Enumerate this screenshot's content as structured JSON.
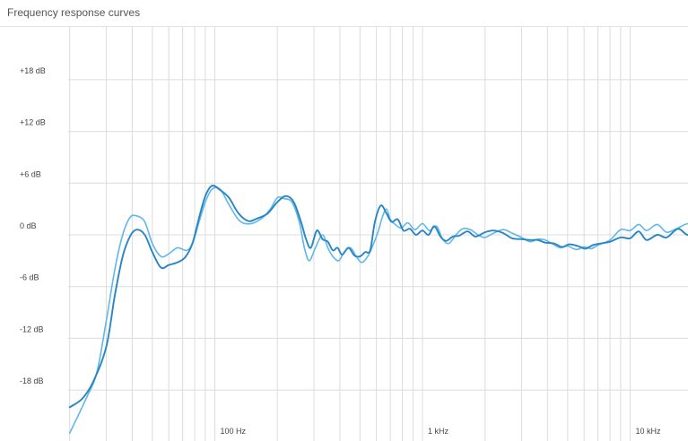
{
  "title": "Frequency response curves",
  "colors": {
    "background": "#ffffff",
    "grid": "#dcdcdc",
    "series_dark": "#2a86c2",
    "series_light": "#5fb7ea"
  },
  "chart_data": {
    "type": "line",
    "title": "Frequency response curves",
    "x_scale": "log",
    "xlim_hz": [
      20,
      23000
    ],
    "ylim_db": [
      -21,
      23
    ],
    "grid": true,
    "x_ticks": [
      {
        "value": 100,
        "label": "100 Hz"
      },
      {
        "value": 1000,
        "label": "1 kHz"
      },
      {
        "value": 10000,
        "label": "10 kHz"
      }
    ],
    "y_ticks": [
      {
        "value": 18,
        "label": "+18 dB"
      },
      {
        "value": 12,
        "label": "+12 dB"
      },
      {
        "value": 6,
        "label": "+6 dB"
      },
      {
        "value": 0,
        "label": "0 dB"
      },
      {
        "value": -6,
        "label": "-6 dB"
      },
      {
        "value": -12,
        "label": "-12 dB"
      },
      {
        "value": -18,
        "label": "-18 dB"
      }
    ],
    "series": [
      {
        "color": "#5fb7ea",
        "points": [
          [
            20,
            -23
          ],
          [
            24,
            -19
          ],
          [
            27,
            -16
          ],
          [
            30,
            -10
          ],
          [
            33,
            -4
          ],
          [
            36,
            0
          ],
          [
            39,
            2
          ],
          [
            42,
            2.2
          ],
          [
            46,
            1.5
          ],
          [
            50,
            -1
          ],
          [
            55,
            -2.5
          ],
          [
            60,
            -2.2
          ],
          [
            66,
            -1.5
          ],
          [
            73,
            -1.8
          ],
          [
            78,
            -1
          ],
          [
            84,
            1.5
          ],
          [
            90,
            3.8
          ],
          [
            97,
            5.3
          ],
          [
            106,
            5.3
          ],
          [
            117,
            3.5
          ],
          [
            132,
            1.6
          ],
          [
            150,
            1.3
          ],
          [
            170,
            2
          ],
          [
            185,
            3
          ],
          [
            200,
            4.3
          ],
          [
            215,
            4.2
          ],
          [
            235,
            3.8
          ],
          [
            255,
            1.5
          ],
          [
            270,
            -1.5
          ],
          [
            285,
            -3
          ],
          [
            305,
            -1.5
          ],
          [
            330,
            0
          ],
          [
            350,
            -1.5
          ],
          [
            370,
            -2.5
          ],
          [
            395,
            -3
          ],
          [
            420,
            -2
          ],
          [
            450,
            -1.5
          ],
          [
            480,
            -2.5
          ],
          [
            510,
            -3.2
          ],
          [
            545,
            -2.5
          ],
          [
            575,
            -1.3
          ],
          [
            610,
            0.3
          ],
          [
            640,
            2
          ],
          [
            670,
            3
          ],
          [
            700,
            1.8
          ],
          [
            740,
            1.2
          ],
          [
            790,
            0.8
          ],
          [
            850,
            1.4
          ],
          [
            920,
            0.6
          ],
          [
            1000,
            1.3
          ],
          [
            1080,
            0.5
          ],
          [
            1170,
            1
          ],
          [
            1250,
            -0.5
          ],
          [
            1340,
            -1
          ],
          [
            1450,
            0
          ],
          [
            1560,
            0.7
          ],
          [
            1700,
            0.6
          ],
          [
            1850,
            0
          ],
          [
            2000,
            -0.3
          ],
          [
            2200,
            0.2
          ],
          [
            2450,
            0.6
          ],
          [
            2700,
            0.2
          ],
          [
            3000,
            -0.3
          ],
          [
            3300,
            -0.8
          ],
          [
            3600,
            -0.5
          ],
          [
            3900,
            -0.6
          ],
          [
            4200,
            -1
          ],
          [
            4600,
            -1.5
          ],
          [
            5000,
            -1.3
          ],
          [
            5500,
            -1.7
          ],
          [
            6000,
            -1.4
          ],
          [
            6500,
            -1.6
          ],
          [
            7000,
            -1.2
          ],
          [
            8000,
            -0.6
          ],
          [
            9000,
            0.6
          ],
          [
            10000,
            0.5
          ],
          [
            11000,
            1.2
          ],
          [
            12000,
            0.5
          ],
          [
            13500,
            1.2
          ],
          [
            15000,
            0.3
          ],
          [
            17000,
            0.8
          ],
          [
            19000,
            1.3
          ],
          [
            21000,
            0.9
          ],
          [
            22500,
            0.5
          ]
        ]
      },
      {
        "color": "#2a86c2",
        "points": [
          [
            20,
            -20
          ],
          [
            23,
            -19
          ],
          [
            26,
            -17
          ],
          [
            30,
            -13
          ],
          [
            33,
            -7
          ],
          [
            36,
            -2.5
          ],
          [
            39,
            -0.2
          ],
          [
            42,
            0.6
          ],
          [
            46,
            0
          ],
          [
            50,
            -2
          ],
          [
            55,
            -3.8
          ],
          [
            60,
            -3.5
          ],
          [
            66,
            -3.2
          ],
          [
            72,
            -2.6
          ],
          [
            78,
            -1
          ],
          [
            84,
            2
          ],
          [
            90,
            4.5
          ],
          [
            97,
            5.7
          ],
          [
            106,
            5.2
          ],
          [
            117,
            4.3
          ],
          [
            130,
            2.5
          ],
          [
            145,
            1.6
          ],
          [
            160,
            1.9
          ],
          [
            180,
            2.5
          ],
          [
            200,
            3.8
          ],
          [
            220,
            4.5
          ],
          [
            240,
            3.8
          ],
          [
            260,
            1.5
          ],
          [
            275,
            -0.5
          ],
          [
            290,
            -1.5
          ],
          [
            310,
            0.5
          ],
          [
            330,
            -0.5
          ],
          [
            350,
            -0.8
          ],
          [
            370,
            -1.8
          ],
          [
            390,
            -1.5
          ],
          [
            410,
            -2.3
          ],
          [
            440,
            -1.5
          ],
          [
            470,
            -2.4
          ],
          [
            500,
            -2.5
          ],
          [
            530,
            -2
          ],
          [
            560,
            -1.8
          ],
          [
            590,
            1.5
          ],
          [
            630,
            3.4
          ],
          [
            670,
            2.5
          ],
          [
            710,
            1.5
          ],
          [
            760,
            1.8
          ],
          [
            810,
            0.5
          ],
          [
            870,
            0.7
          ],
          [
            930,
            0
          ],
          [
            1000,
            0.5
          ],
          [
            1070,
            0
          ],
          [
            1140,
            1
          ],
          [
            1220,
            -0.2
          ],
          [
            1300,
            -0.7
          ],
          [
            1400,
            -0.2
          ],
          [
            1500,
            -0.1
          ],
          [
            1650,
            0.4
          ],
          [
            1800,
            -0.2
          ],
          [
            2000,
            0.3
          ],
          [
            2200,
            0.5
          ],
          [
            2450,
            0.2
          ],
          [
            2700,
            -0.4
          ],
          [
            3000,
            -0.5
          ],
          [
            3300,
            -0.6
          ],
          [
            3600,
            -0.6
          ],
          [
            3900,
            -0.9
          ],
          [
            4300,
            -1
          ],
          [
            4700,
            -1.4
          ],
          [
            5100,
            -1.1
          ],
          [
            5600,
            -1.3
          ],
          [
            6100,
            -1.6
          ],
          [
            6600,
            -1.2
          ],
          [
            7200,
            -1
          ],
          [
            8000,
            -0.8
          ],
          [
            9000,
            -0.3
          ],
          [
            10000,
            -0.4
          ],
          [
            11000,
            0.4
          ],
          [
            12000,
            -0.6
          ],
          [
            13500,
            0
          ],
          [
            15000,
            -0.3
          ],
          [
            17000,
            0.7
          ],
          [
            19000,
            0
          ],
          [
            21000,
            1
          ],
          [
            22500,
            0.5
          ]
        ]
      }
    ]
  }
}
